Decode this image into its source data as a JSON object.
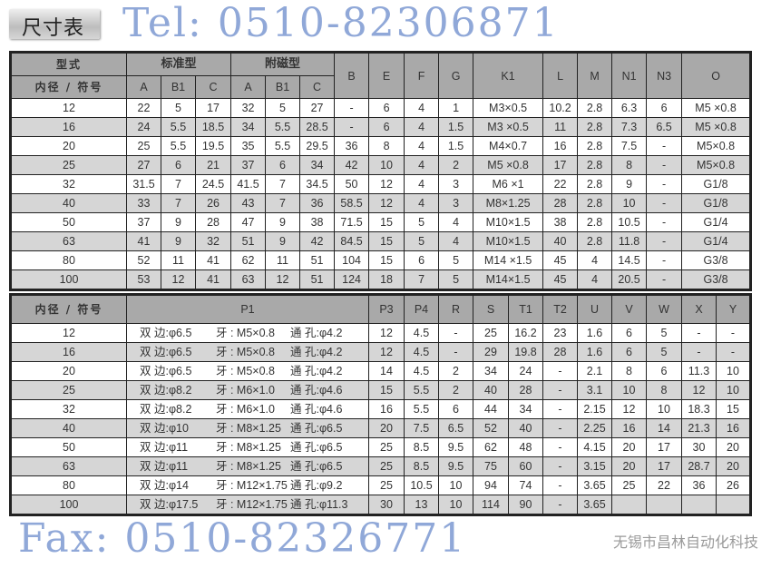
{
  "title": "尺寸表",
  "top_table": {
    "header_row1": {
      "type_label": "型式",
      "standard": "标准型",
      "magnetic": "附磁型",
      "B": "B",
      "E": "E",
      "F": "F",
      "G": "G",
      "K1": "K1",
      "L": "L",
      "M": "M",
      "N1": "N1",
      "N3": "N3",
      "O": "O"
    },
    "header_row2": {
      "bore_label": "内径 / 符号",
      "cols": [
        "A",
        "B1",
        "C",
        "A",
        "B1",
        "C"
      ]
    },
    "rows": [
      [
        "12",
        "22",
        "5",
        "17",
        "32",
        "5",
        "27",
        "-",
        "6",
        "4",
        "1",
        "M3×0.5",
        "10.2",
        "2.8",
        "6.3",
        "6",
        "M5 ×0.8"
      ],
      [
        "16",
        "24",
        "5.5",
        "18.5",
        "34",
        "5.5",
        "28.5",
        "-",
        "6",
        "4",
        "1.5",
        "M3 ×0.5",
        "11",
        "2.8",
        "7.3",
        "6.5",
        "M5 ×0.8"
      ],
      [
        "20",
        "25",
        "5.5",
        "19.5",
        "35",
        "5.5",
        "29.5",
        "36",
        "8",
        "4",
        "1.5",
        "M4×0.7",
        "16",
        "2.8",
        "7.5",
        "-",
        "M5×0.8"
      ],
      [
        "25",
        "27",
        "6",
        "21",
        "37",
        "6",
        "34",
        "42",
        "10",
        "4",
        "2",
        "M5 ×0.8",
        "17",
        "2.8",
        "8",
        "-",
        "M5×0.8"
      ],
      [
        "32",
        "31.5",
        "7",
        "24.5",
        "41.5",
        "7",
        "34.5",
        "50",
        "12",
        "4",
        "3",
        "M6 ×1",
        "22",
        "2.8",
        "9",
        "-",
        "G1/8"
      ],
      [
        "40",
        "33",
        "7",
        "26",
        "43",
        "7",
        "36",
        "58.5",
        "12",
        "4",
        "3",
        "M8×1.25",
        "28",
        "2.8",
        "10",
        "-",
        "G1/8"
      ],
      [
        "50",
        "37",
        "9",
        "28",
        "47",
        "9",
        "38",
        "71.5",
        "15",
        "5",
        "4",
        "M10×1.5",
        "38",
        "2.8",
        "10.5",
        "-",
        "G1/4"
      ],
      [
        "63",
        "41",
        "9",
        "32",
        "51",
        "9",
        "42",
        "84.5",
        "15",
        "5",
        "4",
        "M10×1.5",
        "40",
        "2.8",
        "11.8",
        "-",
        "G1/4"
      ],
      [
        "80",
        "52",
        "11",
        "41",
        "62",
        "11",
        "51",
        "104",
        "15",
        "6",
        "5",
        "M14 ×1.5",
        "45",
        "4",
        "14.5",
        "-",
        "G3/8"
      ],
      [
        "100",
        "53",
        "12",
        "41",
        "63",
        "12",
        "51",
        "124",
        "18",
        "7",
        "5",
        "M14×1.5",
        "45",
        "4",
        "20.5",
        "-",
        "G3/8"
      ]
    ]
  },
  "bottom_table": {
    "headers": [
      "内径 / 符号",
      "P1",
      "P3",
      "P4",
      "R",
      "S",
      "T1",
      "T2",
      "U",
      "V",
      "W",
      "X",
      "Y"
    ],
    "rows": [
      {
        "bore": "12",
        "p1": [
          "双 边:φ6.5",
          "牙 : M5×0.8",
          "通 孔:φ4.2"
        ],
        "vals": [
          "12",
          "4.5",
          "-",
          "25",
          "16.2",
          "23",
          "1.6",
          "6",
          "5",
          "-",
          "-"
        ]
      },
      {
        "bore": "16",
        "p1": [
          "双 边:φ6.5",
          "牙 : M5×0.8",
          "通 孔:φ4.2"
        ],
        "vals": [
          "12",
          "4.5",
          "-",
          "29",
          "19.8",
          "28",
          "1.6",
          "6",
          "5",
          "-",
          "-"
        ]
      },
      {
        "bore": "20",
        "p1": [
          "双 边:φ6.5",
          "牙 : M5×0.8",
          "通 孔:φ4.2"
        ],
        "vals": [
          "14",
          "4.5",
          "2",
          "34",
          "24",
          "-",
          "2.1",
          "8",
          "6",
          "11.3",
          "10"
        ]
      },
      {
        "bore": "25",
        "p1": [
          "双 边:φ8.2",
          "牙 : M6×1.0",
          "通 孔:φ4.6"
        ],
        "vals": [
          "15",
          "5.5",
          "2",
          "40",
          "28",
          "-",
          "3.1",
          "10",
          "8",
          "12",
          "10"
        ]
      },
      {
        "bore": "32",
        "p1": [
          "双 边:φ8.2",
          "牙 : M6×1.0",
          "通 孔:φ4.6"
        ],
        "vals": [
          "16",
          "5.5",
          "6",
          "44",
          "34",
          "-",
          "2.15",
          "12",
          "10",
          "18.3",
          "15"
        ]
      },
      {
        "bore": "40",
        "p1": [
          "双 边:φ10",
          "牙 : M8×1.25",
          "通 孔:φ6.5"
        ],
        "vals": [
          "20",
          "7.5",
          "6.5",
          "52",
          "40",
          "-",
          "2.25",
          "16",
          "14",
          "21.3",
          "16"
        ]
      },
      {
        "bore": "50",
        "p1": [
          "双 边:φ11",
          "牙 : M8×1.25",
          "通 孔:φ6.5"
        ],
        "vals": [
          "25",
          "8.5",
          "9.5",
          "62",
          "48",
          "-",
          "4.15",
          "20",
          "17",
          "30",
          "20"
        ]
      },
      {
        "bore": "63",
        "p1": [
          "双 边:φ11",
          "牙 : M8×1.25",
          "通 孔:φ6.5"
        ],
        "vals": [
          "25",
          "8.5",
          "9.5",
          "75",
          "60",
          "-",
          "3.15",
          "20",
          "17",
          "28.7",
          "20"
        ]
      },
      {
        "bore": "80",
        "p1": [
          "双 边:φ14",
          "牙 : M12×1.75",
          "通 孔:φ9.2"
        ],
        "vals": [
          "25",
          "10.5",
          "10",
          "94",
          "74",
          "-",
          "3.65",
          "25",
          "22",
          "36",
          "26"
        ]
      },
      {
        "bore": "100",
        "p1": [
          "双 边:φ17.5",
          "牙 : M12×1.75",
          "通 孔:φ11.3"
        ],
        "vals": [
          "30",
          "13",
          "10",
          "114",
          "90",
          "-",
          "3.65",
          "",
          "",
          "",
          ""
        ]
      }
    ]
  },
  "watermarks": {
    "tel": "Tel: 0510-82306871",
    "fax": "Fax: 0510-82326771",
    "company": "无锡市昌林自动化科技"
  },
  "colors": {
    "header_bg": "#a9a9a9",
    "row_alt": "#d6d6d6",
    "watermark": "#466ebe"
  }
}
